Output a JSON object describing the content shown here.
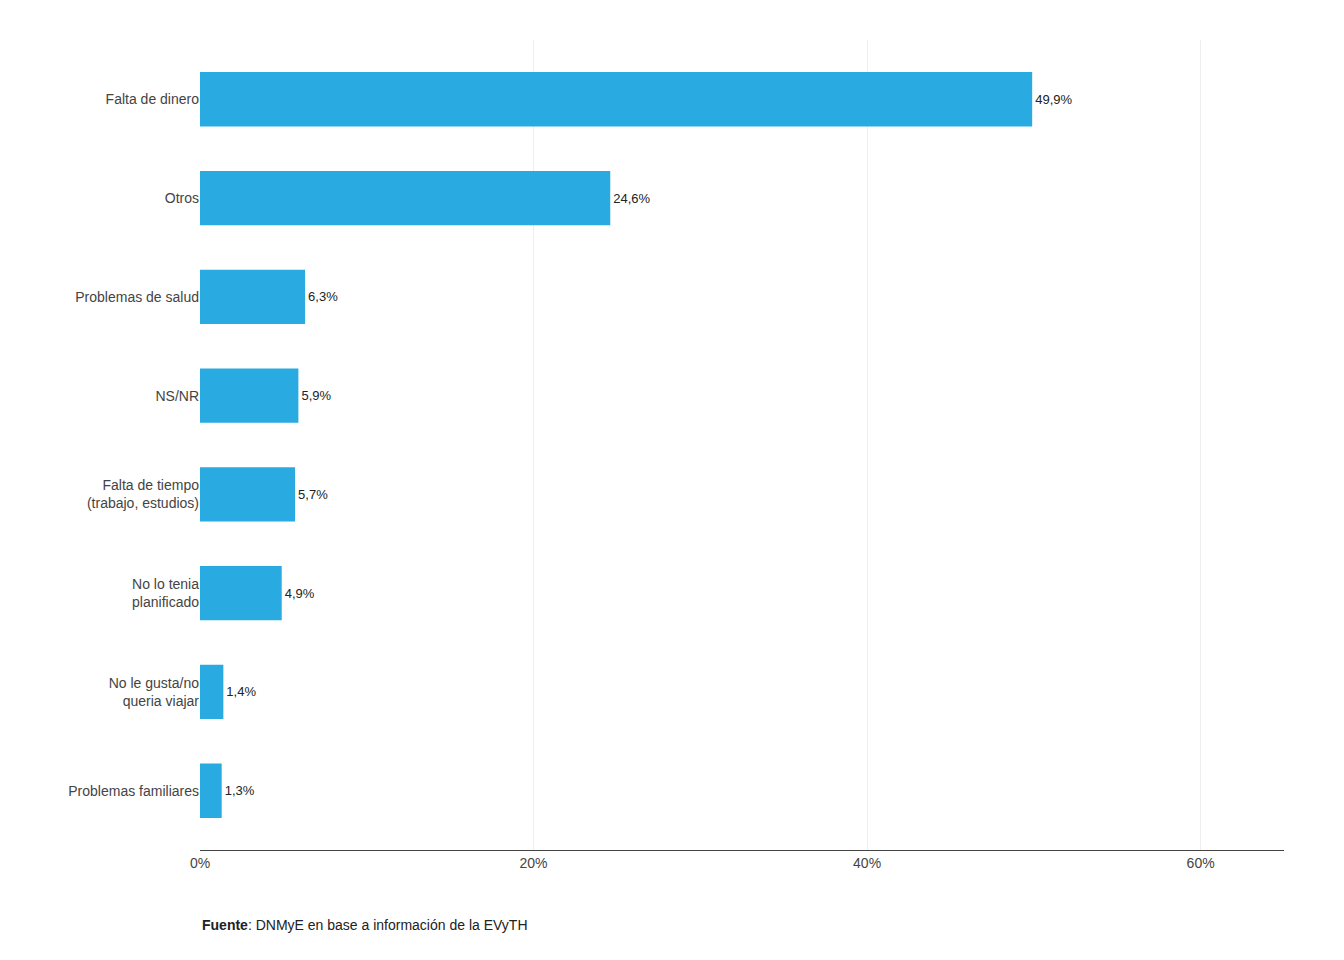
{
  "chart_data": {
    "type": "bar",
    "orientation": "horizontal",
    "categories": [
      "Problemas familiares",
      "No le gusta/no\nqueria viajar",
      "No lo tenia\nplanificado",
      "Falta de tiempo\n(trabajo, estudios)",
      "NS/NR",
      "Problemas de salud",
      "Otros",
      "Falta de dinero"
    ],
    "values": [
      1.3,
      1.4,
      4.9,
      5.7,
      5.9,
      6.3,
      24.6,
      49.9
    ],
    "value_labels": [
      "1,3%",
      "1,4%",
      "4,9%",
      "5,7%",
      "5,9%",
      "6,3%",
      "24,6%",
      "49,9%"
    ],
    "data_labels": true,
    "color": "#29ABE2",
    "xlim": [
      0,
      65
    ],
    "xticks": [
      {
        "value": 0,
        "label": "0%"
      },
      {
        "value": 20,
        "label": "20%"
      },
      {
        "value": 40,
        "label": "40%"
      },
      {
        "value": 60,
        "label": "60%"
      }
    ],
    "grid": true,
    "annotations": [
      "Fuente",
      ": DNMyE en base a información de la EVyTH"
    ]
  }
}
